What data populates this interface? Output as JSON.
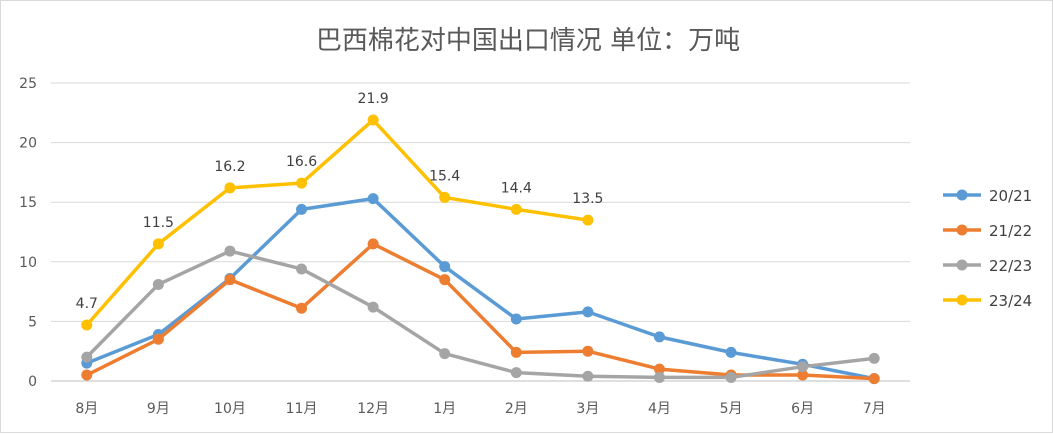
{
  "chart_data": {
    "type": "line",
    "title": "巴西棉花对中国出口情况 单位：万吨",
    "xlabel": "",
    "ylabel": "",
    "categories": [
      "8月",
      "9月",
      "10月",
      "11月",
      "12月",
      "1月",
      "2月",
      "3月",
      "4月",
      "5月",
      "6月",
      "7月"
    ],
    "ylim": [
      0,
      25
    ],
    "yticks": [
      0,
      5,
      10,
      15,
      20,
      25
    ],
    "grid": true,
    "legend_position": "right",
    "series": [
      {
        "name": "20/21",
        "color": "#5b9bd5",
        "values": [
          1.5,
          3.9,
          8.6,
          14.4,
          15.3,
          9.6,
          5.2,
          5.8,
          3.7,
          2.4,
          1.4,
          0.2
        ]
      },
      {
        "name": "21/22",
        "color": "#ed7d31",
        "values": [
          0.5,
          3.5,
          8.5,
          6.1,
          11.5,
          8.5,
          2.4,
          2.5,
          1.0,
          0.5,
          0.5,
          0.2
        ]
      },
      {
        "name": "22/23",
        "color": "#a5a5a5",
        "values": [
          2.0,
          8.1,
          10.9,
          9.4,
          6.2,
          2.3,
          0.7,
          0.4,
          0.3,
          0.3,
          1.2,
          1.9
        ]
      },
      {
        "name": "23/24",
        "color": "#ffc000",
        "values": [
          4.7,
          11.5,
          16.2,
          16.6,
          21.9,
          15.4,
          14.4,
          13.5,
          null,
          null,
          null,
          null
        ],
        "data_labels": true
      }
    ]
  }
}
